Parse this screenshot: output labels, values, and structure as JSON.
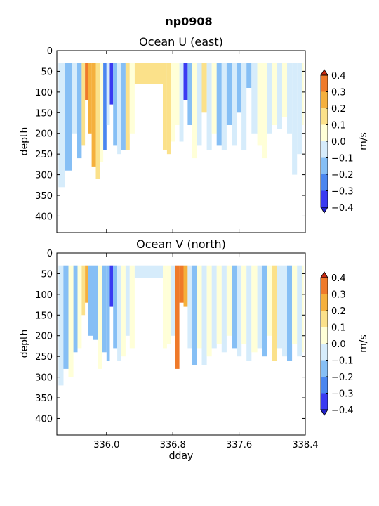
{
  "figure": {
    "title": "np0908"
  },
  "colormap": {
    "levels": [
      -0.4,
      -0.3,
      -0.2,
      -0.1,
      0.0,
      0.1,
      0.2,
      0.3,
      0.4
    ],
    "colors": [
      "#3a3af2",
      "#4a86f0",
      "#86bff5",
      "#d6ecfb",
      "#ffffd8",
      "#fbe18a",
      "#f5b03c",
      "#ef7a2a"
    ],
    "under_color": "#2020c8",
    "over_color": "#c82a10"
  },
  "chart_data": [
    {
      "type": "heatmap",
      "title": "Ocean U (east)",
      "xlabel": "",
      "ylabel": "depth",
      "xlim": [
        335.4,
        338.4
      ],
      "ylim": [
        440,
        0
      ],
      "xticks": [
        "336.0",
        "336.8",
        "337.6",
        "338.4"
      ],
      "yticks": [
        "0",
        "50",
        "100",
        "150",
        "200",
        "250",
        "300",
        "350",
        "400"
      ],
      "depth_top": 30,
      "data_gap": [
        336.4,
        336.8
      ],
      "colorbar": {
        "label": "m/s",
        "ticks": [
          "0.4",
          "0.3",
          "0.2",
          "0.1",
          "0.0",
          "−0.1",
          "−0.2",
          "−0.3",
          "−0.4"
        ]
      },
      "profiles": [
        {
          "x": 335.42,
          "u": -0.05,
          "bottom": 330
        },
        {
          "x": 335.5,
          "u": -0.12,
          "bottom": 290
        },
        {
          "x": 335.58,
          "u": -0.08,
          "bottom": 200
        },
        {
          "x": 335.64,
          "u": -0.15,
          "bottom": 260
        },
        {
          "x": 335.7,
          "u": 0.18,
          "bottom": 230
        },
        {
          "x": 335.74,
          "u": 0.35,
          "bottom": 120
        },
        {
          "x": 335.78,
          "u": 0.28,
          "bottom": 200
        },
        {
          "x": 335.82,
          "u": 0.22,
          "bottom": 280
        },
        {
          "x": 335.87,
          "u": 0.18,
          "bottom": 310
        },
        {
          "x": 335.92,
          "u": 0.1,
          "bottom": 270
        },
        {
          "x": 335.96,
          "u": -0.22,
          "bottom": 240
        },
        {
          "x": 336.0,
          "u": -0.05,
          "bottom": 180
        },
        {
          "x": 336.04,
          "u": -0.32,
          "bottom": 130
        },
        {
          "x": 336.08,
          "u": -0.12,
          "bottom": 230
        },
        {
          "x": 336.13,
          "u": -0.08,
          "bottom": 250
        },
        {
          "x": 336.18,
          "u": -0.1,
          "bottom": 240
        },
        {
          "x": 336.23,
          "u": 0.12,
          "bottom": 240
        },
        {
          "x": 336.28,
          "u": 0.05,
          "bottom": 200
        },
        {
          "x": 336.34,
          "u": 0.15,
          "bottom": 80
        },
        {
          "x": 336.68,
          "u": 0.2,
          "bottom": 240
        },
        {
          "x": 336.73,
          "u": 0.15,
          "bottom": 250
        },
        {
          "x": 336.78,
          "u": 0.1,
          "bottom": 220
        },
        {
          "x": 336.83,
          "u": 0.05,
          "bottom": 180
        },
        {
          "x": 336.88,
          "u": -0.05,
          "bottom": 220
        },
        {
          "x": 336.93,
          "u": -0.3,
          "bottom": 120
        },
        {
          "x": 336.98,
          "u": -0.1,
          "bottom": 180
        },
        {
          "x": 337.03,
          "u": 0.05,
          "bottom": 260
        },
        {
          "x": 337.09,
          "u": -0.05,
          "bottom": 230
        },
        {
          "x": 337.15,
          "u": 0.15,
          "bottom": 150
        },
        {
          "x": 337.21,
          "u": -0.05,
          "bottom": 240
        },
        {
          "x": 337.27,
          "u": 0.08,
          "bottom": 200
        },
        {
          "x": 337.33,
          "u": -0.1,
          "bottom": 230
        },
        {
          "x": 337.39,
          "u": -0.05,
          "bottom": 240
        },
        {
          "x": 337.45,
          "u": -0.12,
          "bottom": 180
        },
        {
          "x": 337.51,
          "u": -0.08,
          "bottom": 230
        },
        {
          "x": 337.57,
          "u": -0.15,
          "bottom": 150
        },
        {
          "x": 337.63,
          "u": -0.05,
          "bottom": 240
        },
        {
          "x": 337.69,
          "u": -0.18,
          "bottom": 90
        },
        {
          "x": 337.75,
          "u": -0.05,
          "bottom": 200
        },
        {
          "x": 337.82,
          "u": 0.05,
          "bottom": 230
        },
        {
          "x": 337.88,
          "u": 0.08,
          "bottom": 260
        },
        {
          "x": 337.94,
          "u": -0.05,
          "bottom": 200
        },
        {
          "x": 338.0,
          "u": 0.05,
          "bottom": 180
        },
        {
          "x": 338.06,
          "u": -0.05,
          "bottom": 190
        },
        {
          "x": 338.12,
          "u": 0.05,
          "bottom": 160
        },
        {
          "x": 338.18,
          "u": -0.05,
          "bottom": 200
        },
        {
          "x": 338.24,
          "u": -0.08,
          "bottom": 300
        },
        {
          "x": 338.3,
          "u": -0.05,
          "bottom": 250
        },
        {
          "x": 338.36,
          "u": 0.05,
          "bottom": 180
        }
      ]
    },
    {
      "type": "heatmap",
      "title": "Ocean V (north)",
      "xlabel": "dday",
      "ylabel": "depth",
      "xlim": [
        335.4,
        338.4
      ],
      "ylim": [
        440,
        0
      ],
      "xticks": [
        "336.0",
        "336.8",
        "337.6",
        "338.4"
      ],
      "yticks": [
        "0",
        "50",
        "100",
        "150",
        "200",
        "250",
        "300",
        "350",
        "400"
      ],
      "depth_top": 30,
      "data_gap": [
        336.4,
        336.8
      ],
      "colorbar": {
        "label": "m/s",
        "ticks": [
          "0.4",
          "0.3",
          "0.2",
          "0.1",
          "0.0",
          "−0.1",
          "−0.2",
          "−0.3",
          "−0.4"
        ]
      },
      "profiles": [
        {
          "x": 335.42,
          "v": -0.05,
          "bottom": 320
        },
        {
          "x": 335.48,
          "v": -0.1,
          "bottom": 280
        },
        {
          "x": 335.54,
          "v": 0.05,
          "bottom": 300
        },
        {
          "x": 335.6,
          "v": -0.15,
          "bottom": 240
        },
        {
          "x": 335.65,
          "v": 0.08,
          "bottom": 230
        },
        {
          "x": 335.7,
          "v": 0.18,
          "bottom": 150
        },
        {
          "x": 335.74,
          "v": 0.25,
          "bottom": 120
        },
        {
          "x": 335.78,
          "v": -0.1,
          "bottom": 200
        },
        {
          "x": 335.84,
          "v": -0.15,
          "bottom": 210
        },
        {
          "x": 335.9,
          "v": 0.05,
          "bottom": 280
        },
        {
          "x": 335.95,
          "v": -0.12,
          "bottom": 240
        },
        {
          "x": 336.0,
          "v": -0.18,
          "bottom": 260
        },
        {
          "x": 336.04,
          "v": -0.35,
          "bottom": 130
        },
        {
          "x": 336.08,
          "v": -0.15,
          "bottom": 230
        },
        {
          "x": 336.13,
          "v": -0.08,
          "bottom": 260
        },
        {
          "x": 336.18,
          "v": 0.05,
          "bottom": 250
        },
        {
          "x": 336.23,
          "v": -0.05,
          "bottom": 200
        },
        {
          "x": 336.28,
          "v": 0.05,
          "bottom": 230
        },
        {
          "x": 336.34,
          "v": -0.05,
          "bottom": 60
        },
        {
          "x": 336.68,
          "v": 0.05,
          "bottom": 230
        },
        {
          "x": 336.73,
          "v": 0.05,
          "bottom": 220
        },
        {
          "x": 336.78,
          "v": -0.05,
          "bottom": 200
        },
        {
          "x": 336.83,
          "v": 0.35,
          "bottom": 280
        },
        {
          "x": 336.88,
          "v": 0.35,
          "bottom": 120
        },
        {
          "x": 336.93,
          "v": 0.25,
          "bottom": 130
        },
        {
          "x": 336.98,
          "v": -0.05,
          "bottom": 230
        },
        {
          "x": 337.03,
          "v": -0.1,
          "bottom": 270
        },
        {
          "x": 337.09,
          "v": 0.05,
          "bottom": 230
        },
        {
          "x": 337.15,
          "v": -0.05,
          "bottom": 270
        },
        {
          "x": 337.21,
          "v": 0.05,
          "bottom": 250
        },
        {
          "x": 337.27,
          "v": -0.08,
          "bottom": 230
        },
        {
          "x": 337.33,
          "v": 0.1,
          "bottom": 220
        },
        {
          "x": 337.39,
          "v": -0.05,
          "bottom": 240
        },
        {
          "x": 337.45,
          "v": 0.05,
          "bottom": 200
        },
        {
          "x": 337.51,
          "v": -0.1,
          "bottom": 230
        },
        {
          "x": 337.57,
          "v": -0.05,
          "bottom": 250
        },
        {
          "x": 337.63,
          "v": 0.05,
          "bottom": 220
        },
        {
          "x": 337.69,
          "v": -0.08,
          "bottom": 260
        },
        {
          "x": 337.75,
          "v": 0.05,
          "bottom": 240
        },
        {
          "x": 337.82,
          "v": -0.05,
          "bottom": 230
        },
        {
          "x": 337.88,
          "v": -0.1,
          "bottom": 250
        },
        {
          "x": 337.94,
          "v": 0.05,
          "bottom": 200
        },
        {
          "x": 338.0,
          "v": 0.12,
          "bottom": 260
        },
        {
          "x": 338.06,
          "v": -0.05,
          "bottom": 230
        },
        {
          "x": 338.12,
          "v": -0.08,
          "bottom": 250
        },
        {
          "x": 338.18,
          "v": -0.1,
          "bottom": 260
        },
        {
          "x": 338.24,
          "v": 0.05,
          "bottom": 220
        },
        {
          "x": 338.3,
          "v": -0.05,
          "bottom": 250
        },
        {
          "x": 338.36,
          "v": 0.1,
          "bottom": 240
        }
      ]
    }
  ]
}
